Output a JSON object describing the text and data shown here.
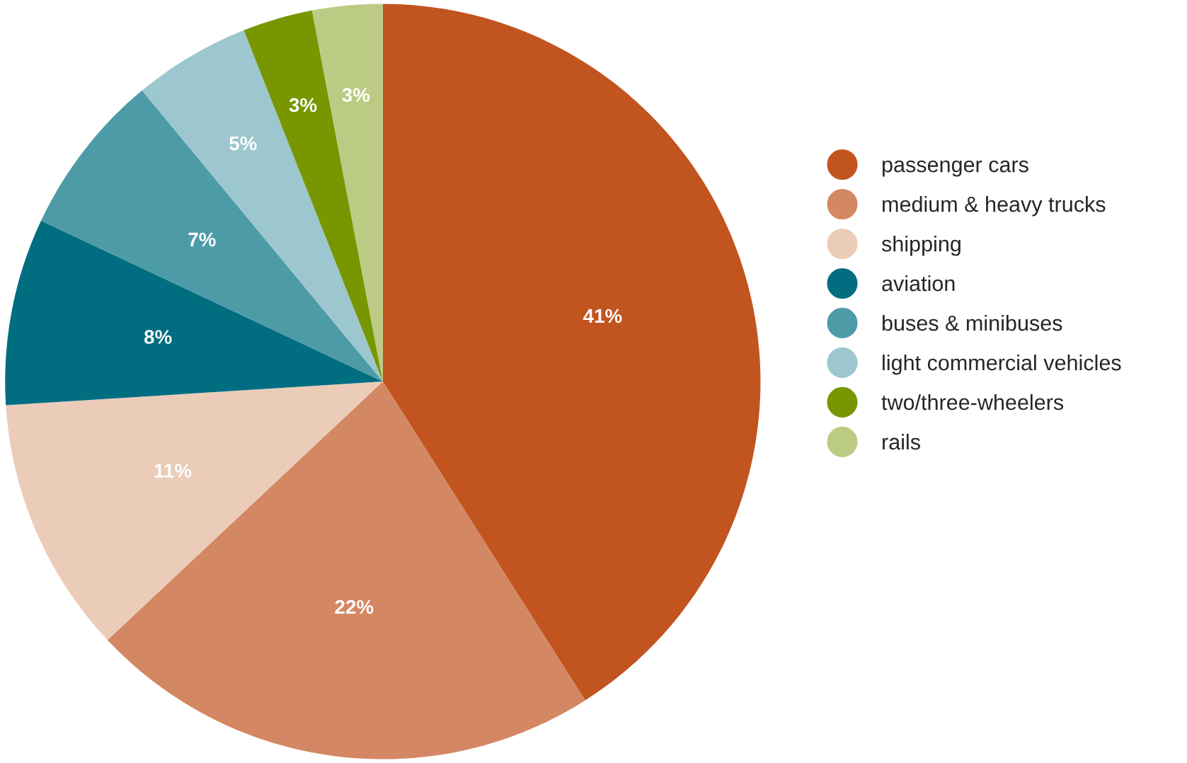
{
  "chart_data": {
    "type": "pie",
    "categories": [
      "passenger cars",
      "medium & heavy trucks",
      "shipping",
      "aviation",
      "buses & minibuses",
      "light commercial vehicles",
      "two/three-wheelers",
      "rails"
    ],
    "values": [
      41,
      22,
      11,
      8,
      7,
      5,
      3,
      3
    ],
    "value_labels": [
      "41%",
      "22%",
      "11%",
      "8%",
      "7%",
      "5%",
      "3%",
      "3%"
    ],
    "colors": [
      "#c1541f",
      "#d48763",
      "#ebccb9",
      "#006e80",
      "#4e9ba8",
      "#9cc7cf",
      "#789600",
      "#bbcb84"
    ],
    "legend": "right"
  }
}
